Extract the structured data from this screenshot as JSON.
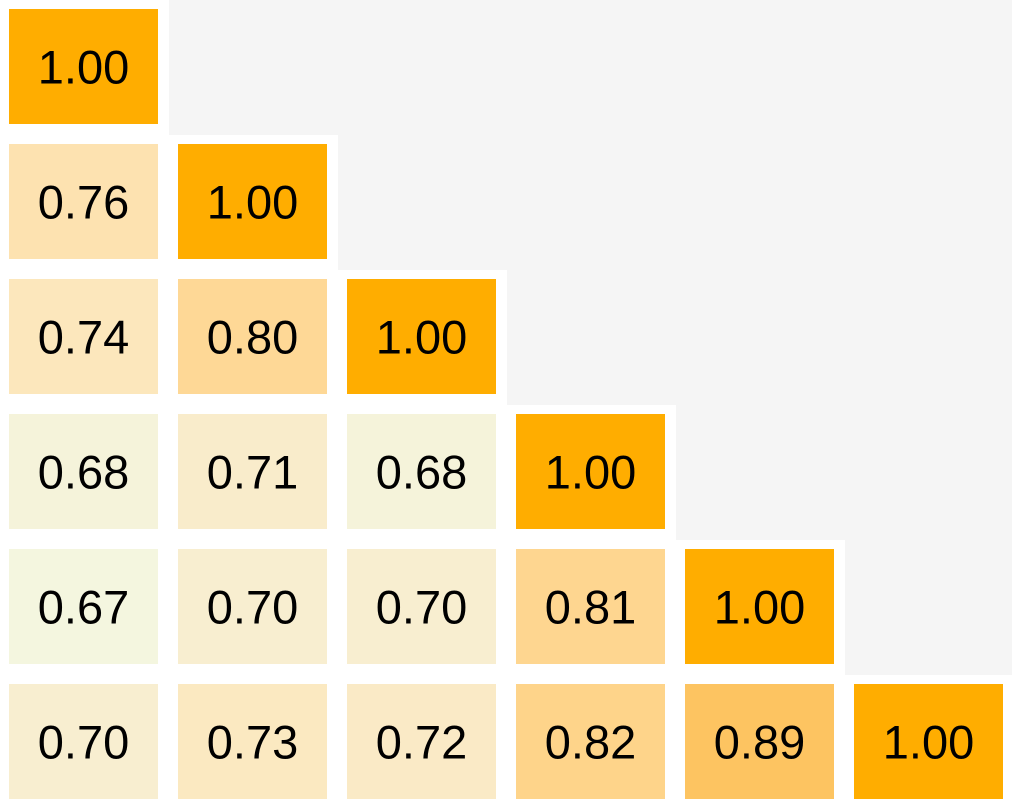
{
  "chart_data": {
    "type": "heatmap",
    "layout": "lower-triangular",
    "rows": [
      [
        "1.00"
      ],
      [
        "0.76",
        "1.00"
      ],
      [
        "0.74",
        "0.80",
        "1.00"
      ],
      [
        "0.68",
        "0.71",
        "0.68",
        "1.00"
      ],
      [
        "0.67",
        "0.70",
        "0.70",
        "0.81",
        "1.00"
      ],
      [
        "0.70",
        "0.73",
        "0.72",
        "0.82",
        "0.89",
        "1.00"
      ]
    ],
    "grid": false,
    "legend": "none"
  },
  "colors": {
    "background": "#f5f5f5",
    "separator": "#ffffff",
    "text": "#000000",
    "scale": [
      {
        "v": 0.67,
        "c": "#f4f6df"
      },
      {
        "v": 0.7,
        "c": "#f8eed0"
      },
      {
        "v": 0.75,
        "c": "#fde5b7"
      },
      {
        "v": 0.8,
        "c": "#fed896"
      },
      {
        "v": 0.89,
        "c": "#fdc461"
      },
      {
        "v": 1.0,
        "c": "#ffad00"
      }
    ]
  }
}
